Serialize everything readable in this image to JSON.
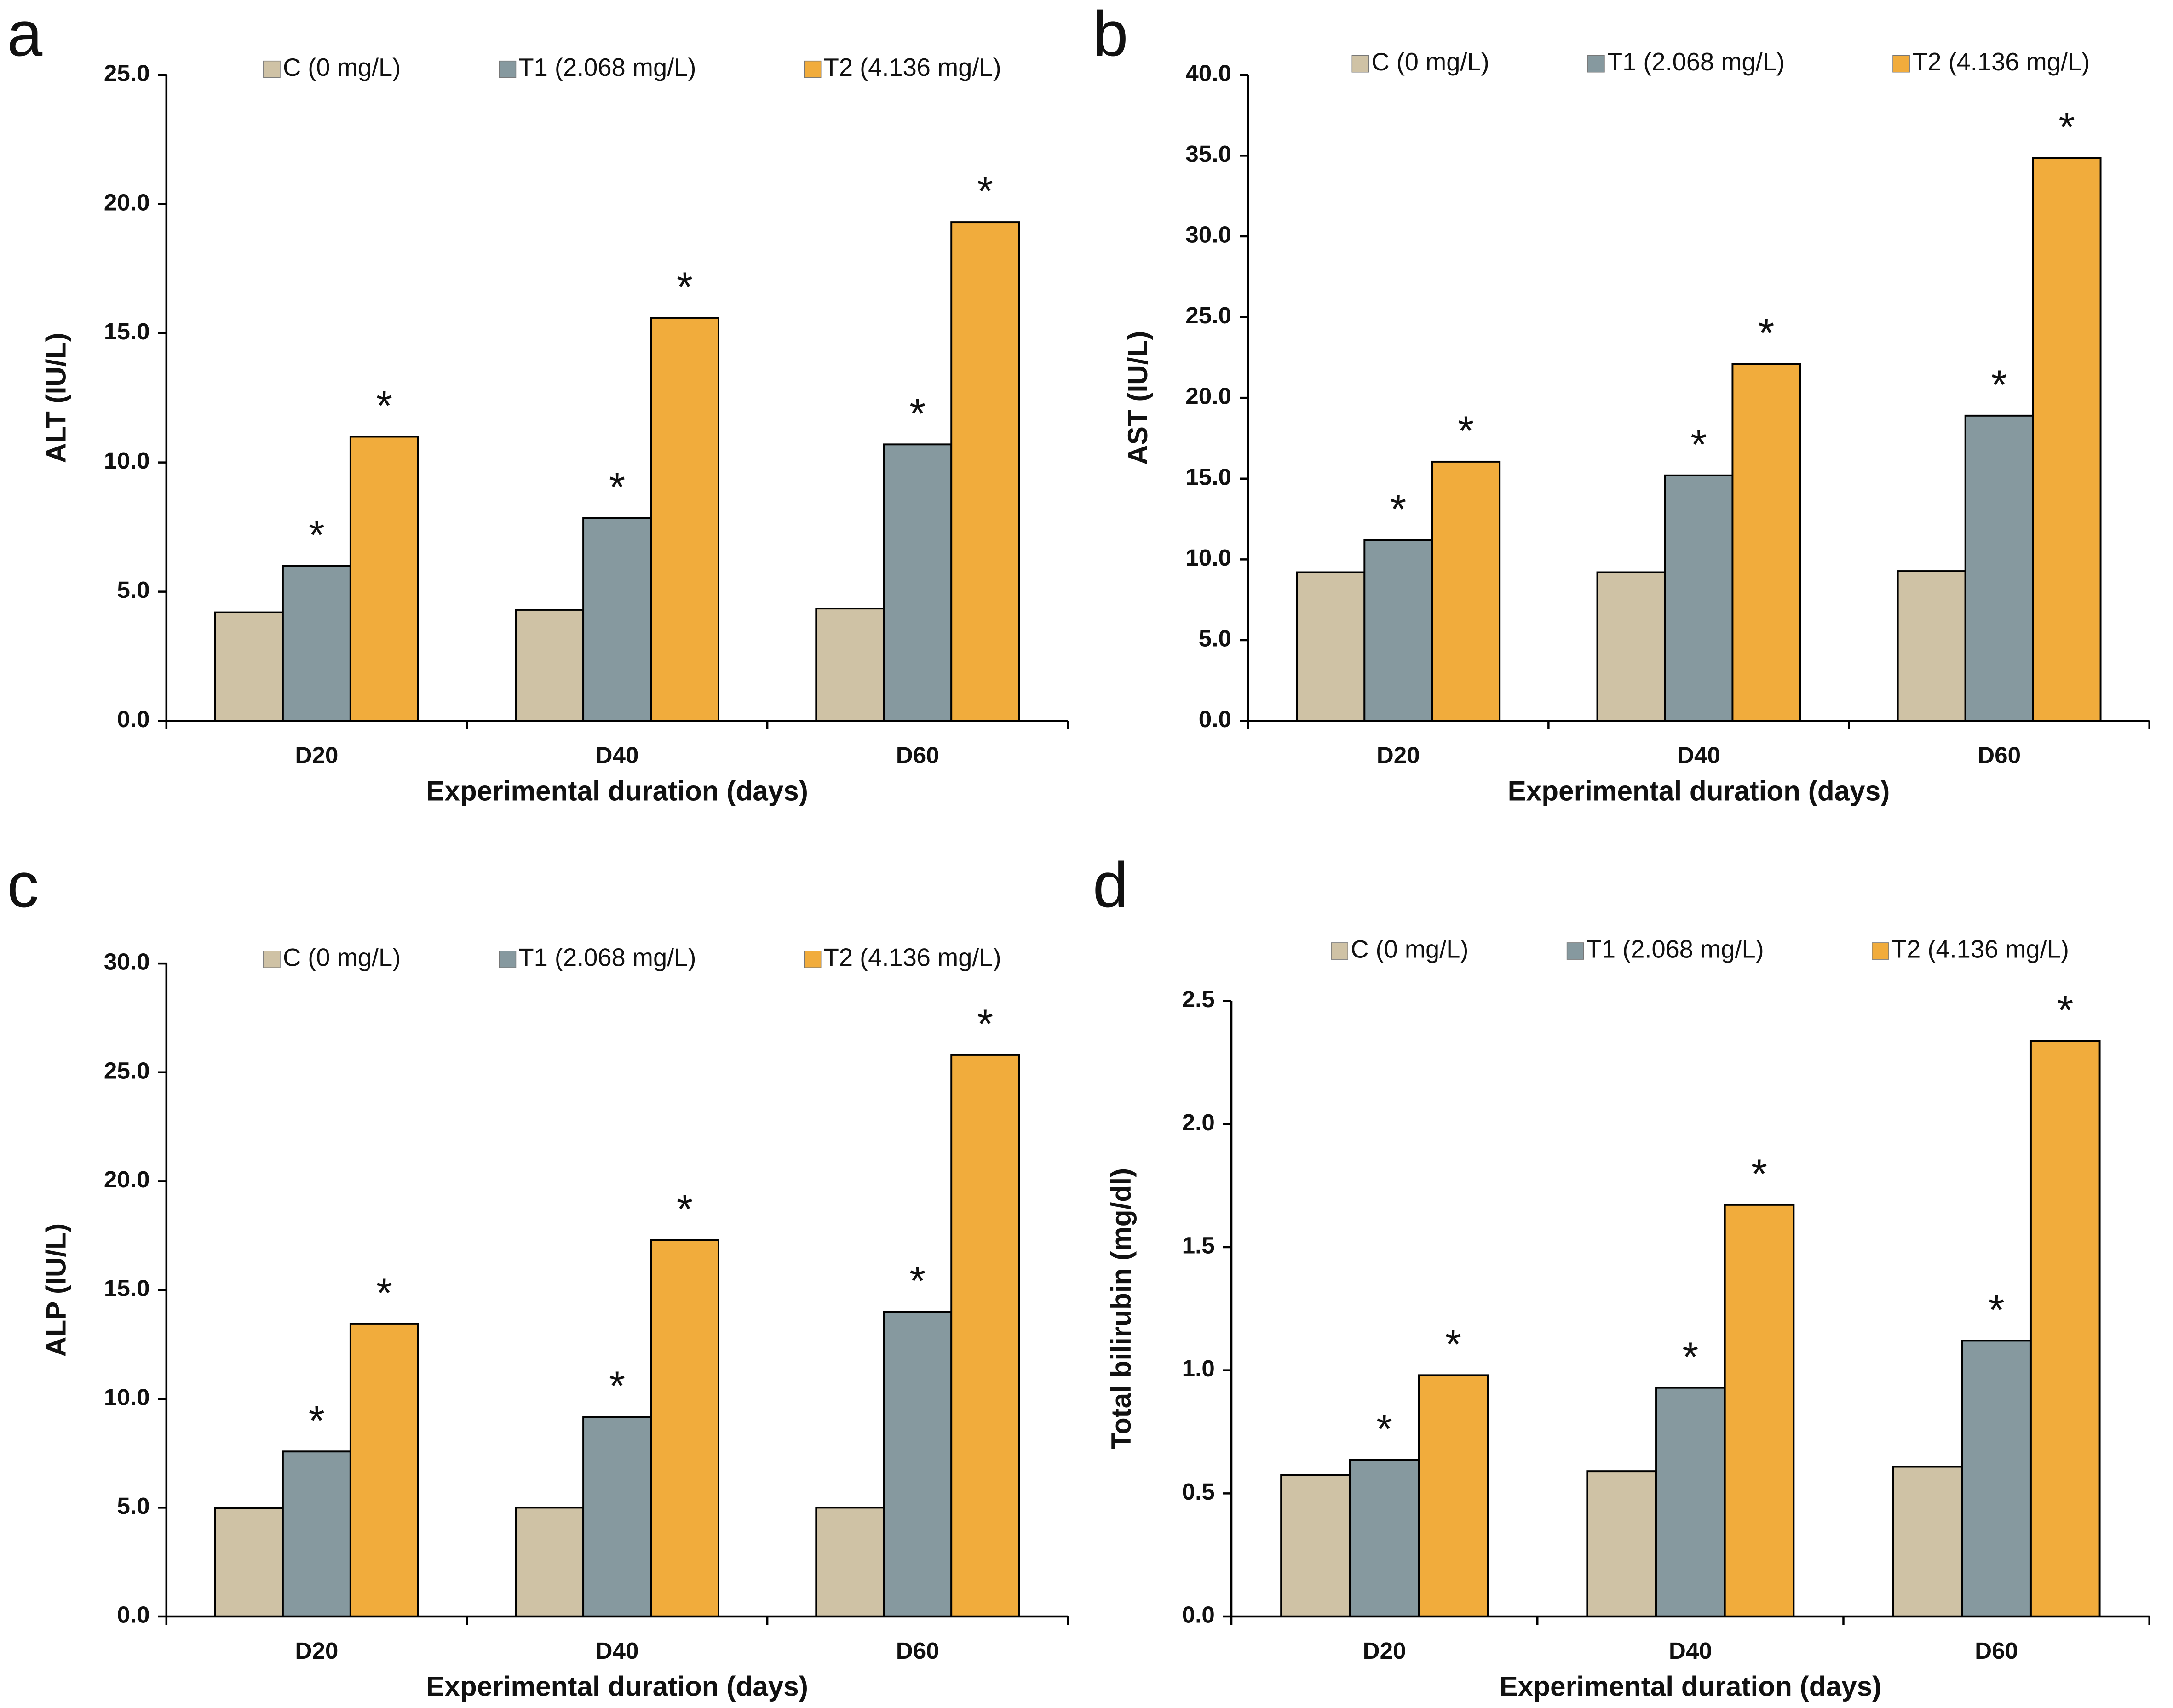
{
  "chart_data": [
    {
      "type": "bar",
      "panel_label": "a",
      "ylabel": "ALT (IU/L)",
      "xlabel": "Experimental duration (days)",
      "categories": [
        "D20",
        "D40",
        "D60"
      ],
      "series": [
        {
          "name": "C (0 mg/L)",
          "color": "#cfc2a5",
          "values": [
            4.2,
            4.3,
            4.35
          ]
        },
        {
          "name": "T1 (2.068 mg/L)",
          "color": "#86999f",
          "values": [
            6.0,
            7.85,
            10.7
          ],
          "markers": [
            "*",
            "*",
            "*"
          ]
        },
        {
          "name": "T2 (4.136 mg/L)",
          "color": "#f1ac3c",
          "values": [
            11.0,
            15.6,
            19.3
          ],
          "markers": [
            "*",
            "*",
            "*"
          ]
        }
      ],
      "ylim": [
        0,
        25
      ],
      "yticks": [
        {
          "value": 0,
          "label": "0.0"
        },
        {
          "value": 5,
          "label": "5.0"
        },
        {
          "value": 10,
          "label": "10.0"
        },
        {
          "value": 15,
          "label": "15.0"
        },
        {
          "value": 20,
          "label": "20.0"
        },
        {
          "value": 25,
          "label": "25.0"
        }
      ]
    },
    {
      "type": "bar",
      "panel_label": "b",
      "ylabel": "AST (IU/L)",
      "xlabel": "Experimental duration (days)",
      "categories": [
        "D20",
        "D40",
        "D60"
      ],
      "series": [
        {
          "name": "C (0 mg/L)",
          "color": "#cfc2a5",
          "values": [
            9.2,
            9.2,
            9.27
          ]
        },
        {
          "name": "T1 (2.068 mg/L)",
          "color": "#86999f",
          "values": [
            11.2,
            15.2,
            18.9
          ],
          "markers": [
            "*",
            "*",
            "*"
          ]
        },
        {
          "name": "T2 (4.136 mg/L)",
          "color": "#f1ac3c",
          "values": [
            16.05,
            22.1,
            34.85
          ],
          "markers": [
            "*",
            "*",
            "*"
          ]
        }
      ],
      "ylim": [
        0,
        40
      ],
      "yticks": [
        {
          "value": 0,
          "label": "0.0"
        },
        {
          "value": 5,
          "label": "5.0"
        },
        {
          "value": 10,
          "label": "10.0"
        },
        {
          "value": 15,
          "label": "15.0"
        },
        {
          "value": 20,
          "label": "20.0"
        },
        {
          "value": 25,
          "label": "25.0"
        },
        {
          "value": 30,
          "label": "30.0"
        },
        {
          "value": 35,
          "label": "35.0"
        },
        {
          "value": 40,
          "label": "40.0"
        }
      ]
    },
    {
      "type": "bar",
      "panel_label": "c",
      "ylabel": "ALP (IU/L)",
      "xlabel": "Experimental duration (days)",
      "categories": [
        "D20",
        "D40",
        "D60"
      ],
      "series": [
        {
          "name": "C (0 mg/L)",
          "color": "#cfc2a5",
          "values": [
            4.97,
            5.0,
            5.0
          ]
        },
        {
          "name": "T1 (2.068 mg/L)",
          "color": "#86999f",
          "values": [
            7.58,
            9.17,
            14.0
          ],
          "markers": [
            "*",
            "*",
            "*"
          ]
        },
        {
          "name": "T2 (4.136 mg/L)",
          "color": "#f1ac3c",
          "values": [
            13.44,
            17.3,
            25.8
          ],
          "markers": [
            "*",
            "*",
            "*"
          ]
        }
      ],
      "ylim": [
        0,
        30
      ],
      "yticks": [
        {
          "value": 0,
          "label": "0.0"
        },
        {
          "value": 5,
          "label": "5.0"
        },
        {
          "value": 10,
          "label": "10.0"
        },
        {
          "value": 15,
          "label": "15.0"
        },
        {
          "value": 20,
          "label": "20.0"
        },
        {
          "value": 25,
          "label": "25.0"
        },
        {
          "value": 30,
          "label": "30.0"
        }
      ]
    },
    {
      "type": "bar",
      "panel_label": "d",
      "ylabel": "Total bilirubin (mg/dl)",
      "xlabel": "Experimental duration (days)",
      "categories": [
        "D20",
        "D40",
        "D60"
      ],
      "series": [
        {
          "name": "C (0 mg/L)",
          "color": "#cfc2a5",
          "values": [
            0.574,
            0.59,
            0.608
          ]
        },
        {
          "name": "T1 (2.068 mg/L)",
          "color": "#86999f",
          "values": [
            0.636,
            0.929,
            1.12
          ],
          "markers": [
            "*",
            "*",
            "*"
          ]
        },
        {
          "name": "T2 (4.136 mg/L)",
          "color": "#f1ac3c",
          "values": [
            0.98,
            1.672,
            2.337
          ],
          "markers": [
            "*",
            "*",
            "*"
          ]
        }
      ],
      "ylim": [
        0,
        2.5
      ],
      "yticks": [
        {
          "value": 0,
          "label": "0.0"
        },
        0.5,
        {
          "value": 1,
          "label": "1.0"
        },
        1.5,
        {
          "value": 2,
          "label": "2.0"
        },
        2.5
      ]
    }
  ]
}
